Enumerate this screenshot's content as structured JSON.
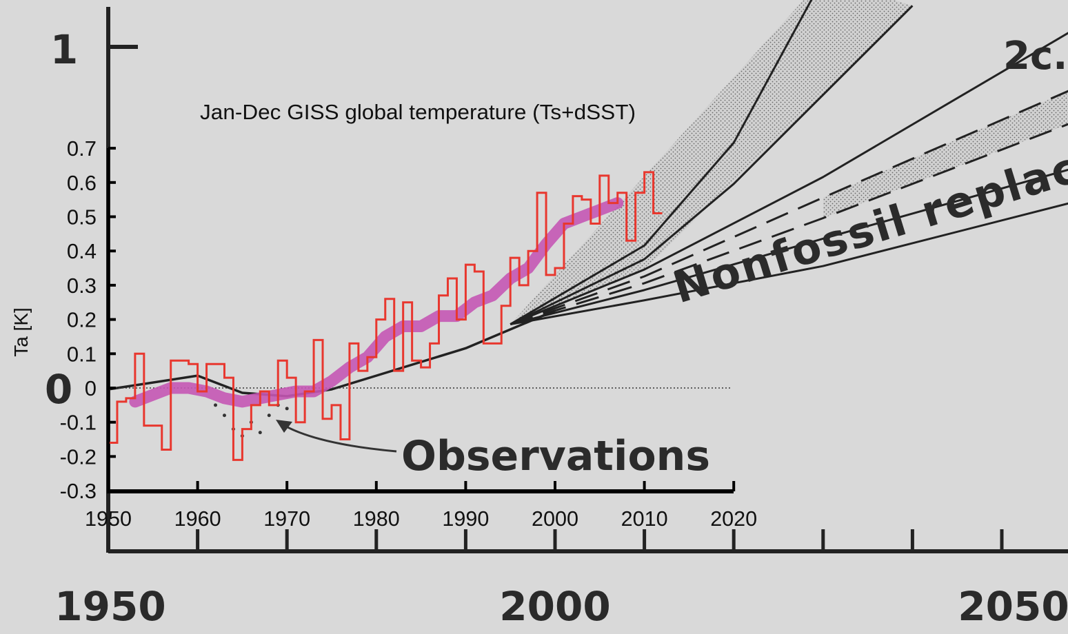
{
  "chart_data": [
    {
      "type": "line",
      "title": "",
      "ylabel": "",
      "xlabel": "",
      "x_tick_labels": [
        "1950",
        "2000",
        "2050"
      ],
      "y_tick_labels": [
        "1",
        "0"
      ],
      "xlim": [
        1950,
        2060
      ],
      "ylim": [
        -0.3,
        1.1
      ],
      "annotations": [
        "Nonfossil replacement",
        "2c."
      ],
      "series": [
        {
          "values": [
            {
              "x": 1950,
              "y": 0.0
            },
            {
              "x": 1960,
              "y": 0.04
            },
            {
              "x": 1965,
              "y": -0.01
            },
            {
              "x": 1970,
              "y": -0.02
            },
            {
              "x": 1975,
              "y": 0.0
            },
            {
              "x": 1980,
              "y": 0.04
            },
            {
              "x": 1990,
              "y": 0.12
            },
            {
              "x": 2000,
              "y": 0.23
            }
          ]
        },
        {
          "values": [
            {
              "x": 1995,
              "y": 0.19
            },
            {
              "x": 2010,
              "y": 0.42
            },
            {
              "x": 2020,
              "y": 0.72
            },
            {
              "x": 2030,
              "y": 1.2
            }
          ]
        },
        {
          "values": [
            {
              "x": 1995,
              "y": 0.19
            },
            {
              "x": 2010,
              "y": 0.38
            },
            {
              "x": 2020,
              "y": 0.6
            },
            {
              "x": 2040,
              "y": 1.12
            }
          ]
        },
        {
          "values": [
            {
              "x": 1995,
              "y": 0.19
            },
            {
              "x": 2010,
              "y": 0.35
            },
            {
              "x": 2030,
              "y": 0.62
            },
            {
              "x": 2060,
              "y": 1.08
            }
          ]
        },
        {
          "values": [
            {
              "x": 1995,
              "y": 0.19
            },
            {
              "x": 2010,
              "y": 0.33
            },
            {
              "x": 2030,
              "y": 0.56
            },
            {
              "x": 2060,
              "y": 0.9
            }
          ]
        },
        {
          "values": [
            {
              "x": 1995,
              "y": 0.19
            },
            {
              "x": 2010,
              "y": 0.31
            },
            {
              "x": 2030,
              "y": 0.5
            },
            {
              "x": 2060,
              "y": 0.8
            }
          ]
        },
        {
          "values": [
            {
              "x": 1995,
              "y": 0.19
            },
            {
              "x": 2010,
              "y": 0.29
            },
            {
              "x": 2030,
              "y": 0.44
            },
            {
              "x": 2060,
              "y": 0.66
            }
          ]
        },
        {
          "values": [
            {
              "x": 1995,
              "y": 0.19
            },
            {
              "x": 2010,
              "y": 0.26
            },
            {
              "x": 2030,
              "y": 0.36
            },
            {
              "x": 2060,
              "y": 0.56
            }
          ]
        }
      ],
      "colors": {
        "ink": "#222222",
        "background": "#d9d9d9",
        "shading": "#a8a8a8"
      }
    },
    {
      "type": "line",
      "title": "Jan-Dec  GISS global temperature (Ts+dSST)",
      "xlabel": "",
      "ylabel": "Ta [K]",
      "xlim": [
        1950,
        2020
      ],
      "ylim": [
        -0.3,
        0.7
      ],
      "x_ticks": [
        "1950",
        "1960",
        "1970",
        "1980",
        "1990",
        "2000",
        "2010",
        "2020"
      ],
      "y_ticks": [
        "0.7",
        "0.6",
        "0.5",
        "0.4",
        "0.3",
        "0.2",
        "0.1",
        "0",
        "-0.1",
        "-0.2",
        "-0.3"
      ],
      "annotations": [
        "Observations"
      ],
      "series": [
        {
          "style": "step",
          "color": "#e8372e",
          "x": [
            1950,
            1951,
            1952,
            1953,
            1954,
            1955,
            1956,
            1957,
            1958,
            1959,
            1960,
            1961,
            1962,
            1963,
            1964,
            1965,
            1966,
            1967,
            1968,
            1969,
            1970,
            1971,
            1972,
            1973,
            1974,
            1975,
            1976,
            1977,
            1978,
            1979,
            1980,
            1981,
            1982,
            1983,
            1984,
            1985,
            1986,
            1987,
            1988,
            1989,
            1990,
            1991,
            1992,
            1993,
            1994,
            1995,
            1996,
            1997,
            1998,
            1999,
            2000,
            2001,
            2002,
            2003,
            2004,
            2005,
            2006,
            2007,
            2008,
            2009,
            2010,
            2011
          ],
          "y": [
            -0.16,
            -0.04,
            -0.03,
            0.1,
            -0.11,
            -0.11,
            -0.18,
            0.08,
            0.08,
            0.07,
            -0.01,
            0.07,
            0.07,
            0.03,
            -0.21,
            -0.12,
            -0.05,
            -0.01,
            -0.05,
            0.08,
            0.03,
            -0.1,
            -0.01,
            0.14,
            -0.09,
            -0.05,
            -0.15,
            0.13,
            0.05,
            0.09,
            0.2,
            0.26,
            0.05,
            0.25,
            0.08,
            0.06,
            0.13,
            0.27,
            0.32,
            0.2,
            0.36,
            0.34,
            0.13,
            0.13,
            0.24,
            0.38,
            0.3,
            0.4,
            0.57,
            0.33,
            0.35,
            0.48,
            0.56,
            0.55,
            0.48,
            0.62,
            0.54,
            0.57,
            0.43,
            0.57,
            0.63,
            0.51
          ]
        },
        {
          "style": "smooth",
          "color": "#c456b4",
          "x": [
            1953,
            1955,
            1957,
            1959,
            1961,
            1963,
            1965,
            1967,
            1969,
            1971,
            1973,
            1975,
            1977,
            1979,
            1981,
            1983,
            1985,
            1987,
            1989,
            1991,
            1993,
            1995,
            1997,
            1999,
            2001,
            2003,
            2005,
            2007
          ],
          "y": [
            -0.04,
            -0.02,
            0.0,
            0.0,
            -0.01,
            -0.03,
            -0.04,
            -0.03,
            -0.02,
            -0.01,
            -0.01,
            0.02,
            0.06,
            0.09,
            0.15,
            0.18,
            0.18,
            0.21,
            0.21,
            0.25,
            0.27,
            0.32,
            0.35,
            0.42,
            0.48,
            0.5,
            0.52,
            0.54
          ]
        }
      ],
      "grid": false
    }
  ]
}
